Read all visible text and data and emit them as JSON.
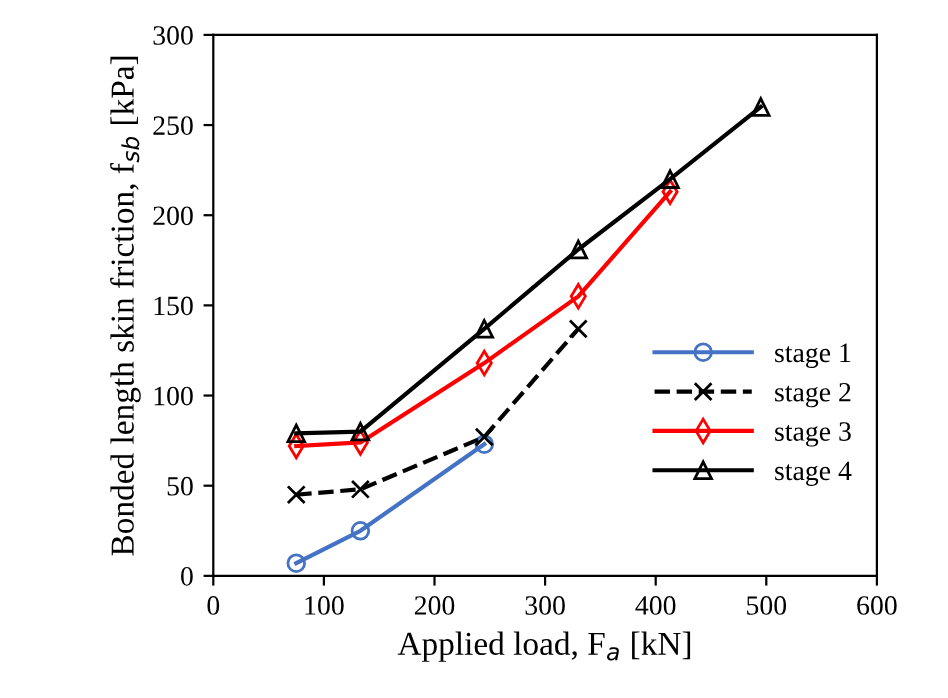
{
  "chart_data": {
    "type": "line",
    "xlabel": "Applied load, F$_{a}$ [kN]",
    "ylabel": "Bonded length skin friction, f$_{sb}$ [kPa]",
    "xlim": [
      0,
      600
    ],
    "xticks": [
      0,
      100,
      200,
      300,
      400,
      500,
      600
    ],
    "ylim": [
      0,
      300
    ],
    "yticks": [
      0,
      50,
      100,
      150,
      200,
      250,
      300
    ],
    "grid": false,
    "legend": "lower right",
    "series": [
      {
        "name": "stage 1",
        "color": "#4472c4",
        "marker": "circle",
        "line_style": "solid",
        "x": [
          75,
          133,
          245
        ],
        "values": [
          7,
          25,
          73
        ]
      },
      {
        "name": "stage 2",
        "color": "#000000",
        "marker": "cross",
        "line_style": "dashed",
        "x": [
          75,
          133,
          245,
          330
        ],
        "values": [
          45,
          48,
          77,
          137
        ]
      },
      {
        "name": "stage 3",
        "color": "#ff0000",
        "marker": "diamond",
        "line_style": "solid",
        "x": [
          75,
          133,
          245,
          330,
          413
        ],
        "values": [
          72,
          74,
          118,
          155,
          213
        ]
      },
      {
        "name": "stage 4",
        "color": "#000000",
        "marker": "triangle",
        "line_style": "solid",
        "x": [
          75,
          133,
          245,
          330,
          413,
          495
        ],
        "values": [
          79,
          80,
          137,
          181,
          220,
          260
        ]
      }
    ]
  }
}
